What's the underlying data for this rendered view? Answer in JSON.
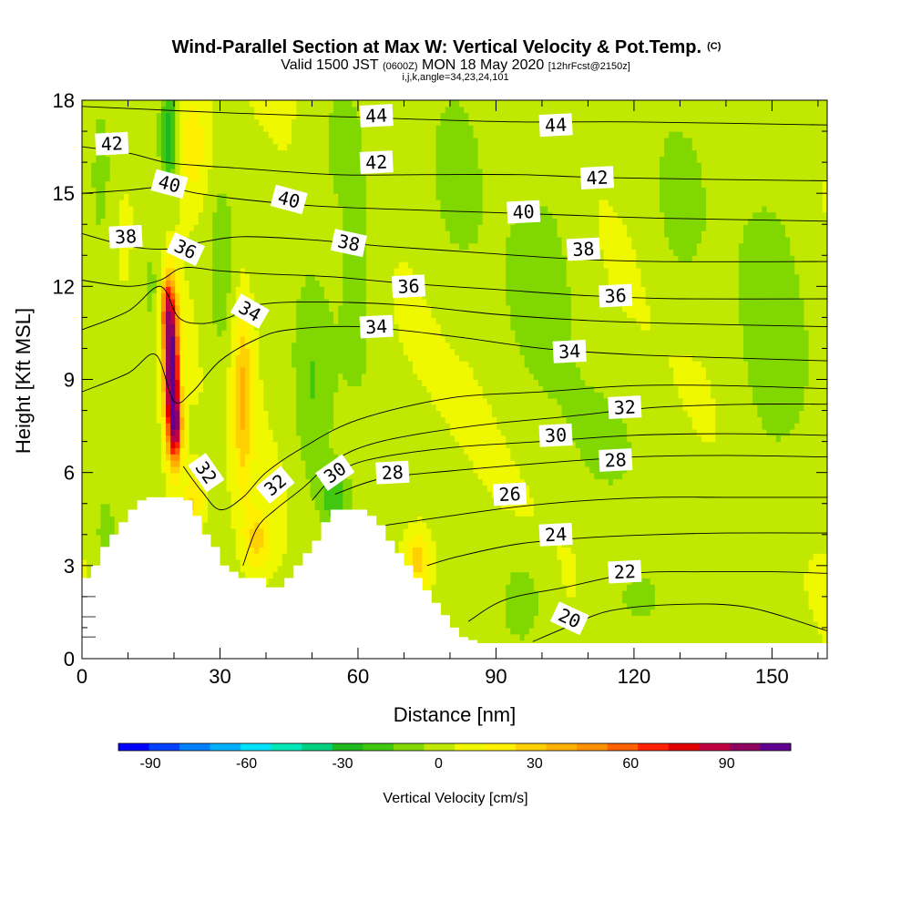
{
  "chart_data": {
    "type": "heatmap",
    "title": "Wind-Parallel Section at Max W: Vertical Velocity & Pot.Temp.",
    "title_mark": "(C)",
    "subtitle_parts": [
      "Valid 1500 JST",
      "(0600Z)",
      "MON 18 May 2020",
      "[12hrFcst@2150z]"
    ],
    "subtitle2": "i,j,k,angle=34,23,24,101",
    "xlabel": "Distance [nm]",
    "ylabel": "Height [Kft MSL]",
    "xlim": [
      0,
      162
    ],
    "ylim": [
      0,
      18
    ],
    "xticks": [
      0,
      30,
      60,
      90,
      120,
      150
    ],
    "yticks": [
      0,
      3,
      6,
      9,
      12,
      15,
      18
    ],
    "colorbar": {
      "label": "Vertical Velocity [cm/s]",
      "tick_values": [
        -90,
        -60,
        -30,
        0,
        30,
        60,
        90
      ],
      "min": -100,
      "max": 110,
      "colors": [
        "#0000ff",
        "#0040ff",
        "#0080ff",
        "#00b0ff",
        "#00e0ff",
        "#00e8b8",
        "#00d080",
        "#20b820",
        "#40c810",
        "#80d800",
        "#c0e800",
        "#f0f800",
        "#fff000",
        "#ffd000",
        "#ffb000",
        "#ff9000",
        "#ff6000",
        "#ff2000",
        "#e00000",
        "#c00040",
        "#900060",
        "#600090"
      ]
    },
    "terrain_profile": [
      [
        0,
        2.6
      ],
      [
        2,
        3.0
      ],
      [
        4,
        3.6
      ],
      [
        6,
        4.0
      ],
      [
        8,
        4.4
      ],
      [
        10,
        4.8
      ],
      [
        12,
        5.1
      ],
      [
        14,
        5.2
      ],
      [
        16,
        5.2
      ],
      [
        18,
        5.2
      ],
      [
        20,
        5.2
      ],
      [
        22,
        5.1
      ],
      [
        24,
        4.6
      ],
      [
        26,
        4.0
      ],
      [
        28,
        3.6
      ],
      [
        30,
        3.0
      ],
      [
        32,
        2.8
      ],
      [
        34,
        2.6
      ],
      [
        36,
        2.6
      ],
      [
        38,
        2.6
      ],
      [
        40,
        2.3
      ],
      [
        42,
        2.3
      ],
      [
        44,
        2.6
      ],
      [
        46,
        3.0
      ],
      [
        48,
        3.4
      ],
      [
        50,
        3.8
      ],
      [
        52,
        4.4
      ],
      [
        54,
        4.8
      ],
      [
        56,
        4.8
      ],
      [
        58,
        4.8
      ],
      [
        60,
        4.8
      ],
      [
        62,
        4.6
      ],
      [
        64,
        4.3
      ],
      [
        66,
        3.8
      ],
      [
        68,
        3.4
      ],
      [
        70,
        3.0
      ],
      [
        72,
        2.6
      ],
      [
        74,
        2.2
      ],
      [
        76,
        1.8
      ],
      [
        78,
        1.4
      ],
      [
        80,
        1.0
      ],
      [
        82,
        0.7
      ],
      [
        84,
        0.6
      ],
      [
        86,
        0.5
      ],
      [
        88,
        0.5
      ],
      [
        90,
        0.5
      ],
      [
        162,
        0.5
      ]
    ],
    "w_features": [
      {
        "x": 19.5,
        "z": 9.2,
        "w": 110,
        "sx": 1.6,
        "sz": 2.3
      },
      {
        "x": 18.5,
        "z": 11.3,
        "w": 50,
        "sx": 1.4,
        "sz": 1.2
      },
      {
        "x": 20.5,
        "z": 7.4,
        "w": 60,
        "sx": 1.3,
        "sz": 1.1
      },
      {
        "x": 35,
        "z": 8.5,
        "w": 32,
        "sx": 2.2,
        "sz": 3.0
      },
      {
        "x": 38,
        "z": 3.8,
        "w": 25,
        "sx": 3.0,
        "sz": 1.0
      },
      {
        "x": 24,
        "z": 5.0,
        "w": 25,
        "sx": 2.5,
        "sz": 1.0
      },
      {
        "x": 73,
        "z": 3.2,
        "w": 28,
        "sx": 3.0,
        "sz": 1.0
      },
      {
        "x": 24,
        "z": 16.5,
        "w": 20,
        "sx": 4.0,
        "sz": 2.0
      },
      {
        "x": 19,
        "z": 16.8,
        "w": -35,
        "sx": 1.8,
        "sz": 1.6
      },
      {
        "x": 4,
        "z": 15.5,
        "w": -15,
        "sx": 2.5,
        "sz": 2.5
      },
      {
        "x": 15,
        "z": 12.0,
        "w": -12,
        "sx": 3.0,
        "sz": 2.0
      },
      {
        "x": 30,
        "z": 12.0,
        "w": -12,
        "sx": 3.0,
        "sz": 3.5
      },
      {
        "x": 55,
        "z": 5.2,
        "w": -25,
        "sx": 3.0,
        "sz": 1.0
      },
      {
        "x": 50,
        "z": 8.5,
        "w": -15,
        "sx": 4.0,
        "sz": 4.0
      },
      {
        "x": 60,
        "z": 12.5,
        "w": -12,
        "sx": 5.0,
        "sz": 4.0
      },
      {
        "x": 55,
        "z": 16.5,
        "w": -10,
        "sx": 6.0,
        "sz": 2.5
      },
      {
        "x": 100,
        "z": 12.5,
        "w": -12,
        "sx": 8.0,
        "sz": 4.0
      },
      {
        "x": 113,
        "z": 7.0,
        "w": -7,
        "sx": 10.0,
        "sz": 2.5
      },
      {
        "x": 96,
        "z": 2.0,
        "w": -12,
        "sx": 5.0,
        "sz": 1.5
      },
      {
        "x": 120,
        "z": 1.8,
        "w": -10,
        "sx": 8.0,
        "sz": 1.4
      },
      {
        "x": 150,
        "z": 10.5,
        "w": -12,
        "sx": 8.0,
        "sz": 6.0
      },
      {
        "x": 130,
        "z": 14.5,
        "w": -10,
        "sx": 6.0,
        "sz": 3.0
      },
      {
        "x": 82,
        "z": 16.0,
        "w": -10,
        "sx": 6.0,
        "sz": 3.5
      },
      {
        "x": 5,
        "z": 4.0,
        "w": -12,
        "sx": 3.0,
        "sz": 1.5
      }
    ],
    "isentropes": [
      {
        "level": 20,
        "points": [
          [
            98,
            0.55
          ],
          [
            106,
            1.05
          ],
          [
            115,
            1.55
          ],
          [
            130,
            1.75
          ],
          [
            145,
            1.65
          ],
          [
            162,
            0.9
          ]
        ]
      },
      {
        "level": 22,
        "points": [
          [
            84,
            1.2
          ],
          [
            92,
            1.9
          ],
          [
            105,
            2.3
          ],
          [
            120,
            2.75
          ],
          [
            135,
            2.8
          ],
          [
            150,
            2.8
          ],
          [
            162,
            2.75
          ]
        ]
      },
      {
        "level": 24,
        "points": [
          [
            75,
            3.0
          ],
          [
            82,
            3.3
          ],
          [
            95,
            3.7
          ],
          [
            110,
            3.9
          ],
          [
            125,
            4.0
          ],
          [
            140,
            4.05
          ],
          [
            162,
            4.05
          ]
        ]
      },
      {
        "level": 26,
        "points": [
          [
            66,
            4.3
          ],
          [
            80,
            4.6
          ],
          [
            95,
            4.9
          ],
          [
            110,
            5.1
          ],
          [
            125,
            5.2
          ],
          [
            140,
            5.2
          ],
          [
            162,
            5.2
          ]
        ]
      },
      {
        "level": 28,
        "points": [
          [
            55,
            5.3
          ],
          [
            65,
            5.8
          ],
          [
            80,
            6.05
          ],
          [
            100,
            6.3
          ],
          [
            120,
            6.5
          ],
          [
            140,
            6.55
          ],
          [
            162,
            6.5
          ]
        ]
      },
      {
        "level": 30,
        "points": [
          [
            50,
            5.1
          ],
          [
            55,
            5.9
          ],
          [
            62,
            6.4
          ],
          [
            80,
            6.8
          ],
          [
            100,
            7.0
          ],
          [
            120,
            7.2
          ],
          [
            140,
            7.25
          ],
          [
            162,
            7.2
          ]
        ]
      },
      {
        "level": 32,
        "points": [
          [
            35,
            3.0
          ],
          [
            38,
            4.2
          ],
          [
            42,
            4.8
          ],
          [
            48,
            5.5
          ],
          [
            55,
            6.4
          ],
          [
            65,
            7.0
          ],
          [
            85,
            7.5
          ],
          [
            105,
            7.8
          ],
          [
            125,
            8.1
          ],
          [
            145,
            8.2
          ],
          [
            162,
            8.2
          ]
        ]
      },
      {
        "level": 33,
        "points": [
          [
            22,
            6.2
          ],
          [
            26,
            5.4
          ],
          [
            30,
            4.8
          ],
          [
            35,
            5.2
          ],
          [
            40,
            6.0
          ],
          [
            48,
            6.8
          ],
          [
            60,
            7.7
          ],
          [
            80,
            8.4
          ],
          [
            100,
            8.6
          ],
          [
            120,
            8.8
          ],
          [
            140,
            8.8
          ],
          [
            162,
            8.7
          ]
        ]
      },
      {
        "level": 34,
        "points": [
          [
            0,
            8.6
          ],
          [
            10,
            9.2
          ],
          [
            16,
            9.8
          ],
          [
            20,
            8.3
          ],
          [
            24,
            8.6
          ],
          [
            30,
            9.6
          ],
          [
            38,
            10.3
          ],
          [
            45,
            10.6
          ],
          [
            60,
            10.7
          ],
          [
            80,
            10.4
          ],
          [
            100,
            10.0
          ],
          [
            120,
            9.8
          ],
          [
            140,
            9.7
          ],
          [
            162,
            9.6
          ]
        ]
      },
      {
        "level": 35,
        "points": [
          [
            0,
            10.6
          ],
          [
            10,
            11.2
          ],
          [
            17,
            12.0
          ],
          [
            21,
            11.0
          ],
          [
            26,
            10.8
          ],
          [
            32,
            11.0
          ],
          [
            38,
            11.4
          ],
          [
            50,
            11.5
          ],
          [
            70,
            11.4
          ],
          [
            90,
            11.1
          ],
          [
            110,
            10.9
          ],
          [
            130,
            10.8
          ],
          [
            162,
            10.7
          ]
        ]
      },
      {
        "level": 36,
        "points": [
          [
            0,
            12.2
          ],
          [
            10,
            12.0
          ],
          [
            17,
            12.2
          ],
          [
            22,
            12.6
          ],
          [
            30,
            12.5
          ],
          [
            40,
            12.4
          ],
          [
            55,
            12.3
          ],
          [
            70,
            12.1
          ],
          [
            90,
            11.9
          ],
          [
            110,
            11.7
          ],
          [
            130,
            11.6
          ],
          [
            162,
            11.6
          ]
        ]
      },
      {
        "level": 38,
        "points": [
          [
            0,
            13.7
          ],
          [
            10,
            13.3
          ],
          [
            18,
            13.2
          ],
          [
            25,
            13.4
          ],
          [
            35,
            13.6
          ],
          [
            50,
            13.5
          ],
          [
            65,
            13.3
          ],
          [
            85,
            13.1
          ],
          [
            105,
            12.9
          ],
          [
            125,
            12.8
          ],
          [
            162,
            12.8
          ]
        ]
      },
      {
        "level": 40,
        "points": [
          [
            0,
            15.0
          ],
          [
            10,
            15.1
          ],
          [
            18,
            15.2
          ],
          [
            25,
            15.0
          ],
          [
            35,
            14.8
          ],
          [
            50,
            14.6
          ],
          [
            65,
            14.5
          ],
          [
            85,
            14.4
          ],
          [
            105,
            14.3
          ],
          [
            125,
            14.2
          ],
          [
            162,
            14.1
          ]
        ]
      },
      {
        "level": 42,
        "points": [
          [
            0,
            16.5
          ],
          [
            10,
            16.3
          ],
          [
            18,
            16.0
          ],
          [
            25,
            15.9
          ],
          [
            35,
            15.8
          ],
          [
            55,
            15.6
          ],
          [
            75,
            15.6
          ],
          [
            95,
            15.6
          ],
          [
            115,
            15.5
          ],
          [
            162,
            15.4
          ]
        ]
      },
      {
        "level": 44,
        "points": [
          [
            0,
            17.8
          ],
          [
            15,
            17.7
          ],
          [
            30,
            17.6
          ],
          [
            50,
            17.5
          ],
          [
            70,
            17.4
          ],
          [
            95,
            17.3
          ],
          [
            120,
            17.3
          ],
          [
            162,
            17.2
          ]
        ]
      }
    ],
    "contour_labels": [
      {
        "text": "44",
        "x": 64,
        "z": 17.5,
        "angle": -3
      },
      {
        "text": "44",
        "x": 103,
        "z": 17.2,
        "angle": -3
      },
      {
        "text": "42",
        "x": 6.5,
        "z": 16.6,
        "angle": -3
      },
      {
        "text": "42",
        "x": 64,
        "z": 16.0,
        "angle": -3
      },
      {
        "text": "42",
        "x": 112,
        "z": 15.5,
        "angle": -3
      },
      {
        "text": "40",
        "x": 19,
        "z": 15.3,
        "angle": 15
      },
      {
        "text": "40",
        "x": 45,
        "z": 14.8,
        "angle": 15
      },
      {
        "text": "40",
        "x": 96,
        "z": 14.4,
        "angle": -3
      },
      {
        "text": "38",
        "x": 9.5,
        "z": 13.6,
        "angle": -3
      },
      {
        "text": "38",
        "x": 58,
        "z": 13.4,
        "angle": 12
      },
      {
        "text": "38",
        "x": 109,
        "z": 13.2,
        "angle": -3
      },
      {
        "text": "36",
        "x": 22.5,
        "z": 13.2,
        "angle": 25
      },
      {
        "text": "36",
        "x": 71,
        "z": 12.0,
        "angle": -3
      },
      {
        "text": "36",
        "x": 116,
        "z": 11.7,
        "angle": -3
      },
      {
        "text": "34",
        "x": 36.5,
        "z": 11.2,
        "angle": 30
      },
      {
        "text": "34",
        "x": 64,
        "z": 10.7,
        "angle": -3
      },
      {
        "text": "34",
        "x": 106,
        "z": 9.9,
        "angle": -3
      },
      {
        "text": "32",
        "x": 118,
        "z": 8.1,
        "angle": -3
      },
      {
        "text": "30",
        "x": 103,
        "z": 7.2,
        "angle": -3
      },
      {
        "text": "28",
        "x": 116,
        "z": 6.4,
        "angle": -3
      },
      {
        "text": "28",
        "x": 67.5,
        "z": 6.0,
        "angle": -3
      },
      {
        "text": "30",
        "x": 55,
        "z": 6.0,
        "angle": -35
      },
      {
        "text": "32",
        "x": 42,
        "z": 5.6,
        "angle": -40
      },
      {
        "text": "32",
        "x": 27,
        "z": 6.0,
        "angle": 55
      },
      {
        "text": "26",
        "x": 93,
        "z": 5.3,
        "angle": -3
      },
      {
        "text": "24",
        "x": 103,
        "z": 4.0,
        "angle": -3
      },
      {
        "text": "22",
        "x": 118,
        "z": 2.8,
        "angle": -3
      },
      {
        "text": "20",
        "x": 106,
        "z": 1.3,
        "angle": 25
      }
    ]
  }
}
